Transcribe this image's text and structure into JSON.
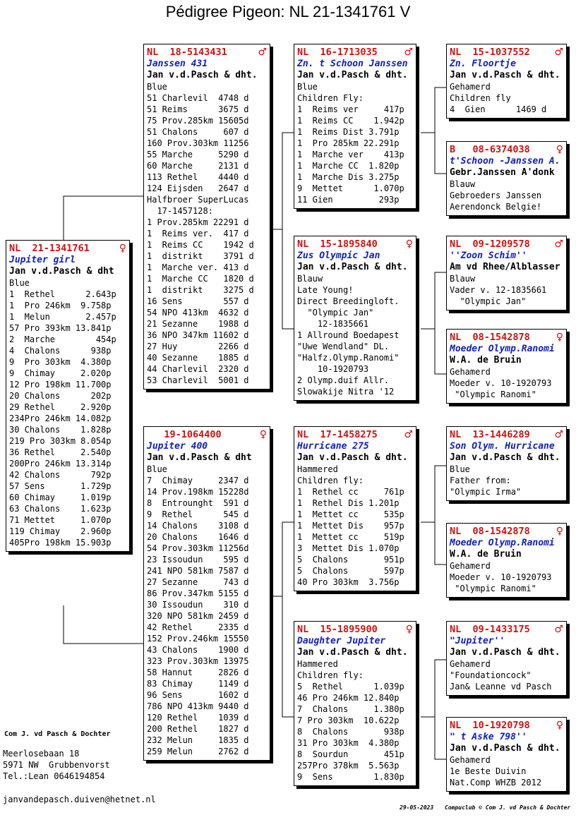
{
  "title": "Pédigree Pigeon: NL  21-1341761 V",
  "cards": [
    {
      "id": "subject",
      "ring": "NL  21-1341761",
      "sex": "♀",
      "name": "Jupiter girl",
      "owner": "Jan v.d.Pasch & dht",
      "lines": [
        "Blue",
        "1  Rethel      2.643p",
        "1  Pro 246km  9.758p",
        "1  Melun       2.457p",
        "57 Pro 393km 13.841p",
        "2  Marche        454p",
        "4  Chalons      938p",
        "9  Pro 303km  4.380p",
        "9  Chimay     2.020p",
        "12 Pro 198km 11.700p",
        "20 Chalons      202p",
        "29 Rethel     2.920p",
        "234Pro 246km 14.082p",
        "30 Chalons    1.828p",
        "219 Pro 303km 8.054p",
        "36 Rethel     2.540p",
        "200Pro 246km 13.314p",
        "42 Chalons      792p",
        "57 Sens       1.729p",
        "60 Chimay     1.019p",
        "63 Chalons    1.623p",
        "71 Mettet     1.070p",
        "119 Chimay    2.960p",
        "405Pro 198km 15.903p"
      ]
    },
    {
      "id": "father",
      "ring": "NL  18-5143431",
      "sex": "♂",
      "name": "Janssen 431",
      "owner": "Jan v.d.Pasch & dht.",
      "lines": [
        "Blue",
        "51 Charlevil  4748 d",
        "51 Reims      3675 d",
        "75 Prov.285km 15605d",
        "51 Chalons     607 d",
        "160 Prov.303km 11256",
        "55 Marche     5290 d",
        "60 Marche     2131 d",
        "113 Rethel    4440 d",
        "124 Eijsden   2647 d",
        "Halfbroer SuperLucas",
        "  17-1457128:",
        "1 Prov.285km 22291 d",
        "1  Reims ver.  417 d",
        "1  Reims CC    1942 d",
        "1  distrikt    3791 d",
        "1  Marche ver. 413 d",
        "1  Marche CC   1820 d",
        "1  distrikt    3275 d",
        "16 Sens        557 d",
        "54 NPO 413km  4632 d",
        "21 Sezanne    1988 d",
        "36 NPO 347km 11602 d",
        "27 Huy        2266 d",
        "40 Sezanne    1885 d",
        "44 Charlevil  2320 d",
        "53 Charlevil  5001 d"
      ]
    },
    {
      "id": "mother",
      "ring": "   19-1064400",
      "sex": "♀",
      "name": "Jupiter 400",
      "owner": "Jan v.d.Pasch & dht",
      "lines": [
        "Blue",
        "7  Chimay     2347 d",
        "14 Prov.198km 15228d",
        "8  Entrounght  591 d",
        "9  Rethel      545 d",
        "14 Chalons    3108 d",
        "20 Chalons    1646 d",
        "54 Prov.303km 11256d",
        "23 Issoudun    595 d",
        "241 NPO 581km 7587 d",
        "27 Sezanne     743 d",
        "86 Prov.347km 5155 d",
        "30 Issoudun    310 d",
        "320 NPO 581km 2459 d",
        "42 Rethel     2335 d",
        "152 Prov.246km 15550",
        "43 Chalons    1900 d",
        "323 Prov.303km 13975",
        "58 Hannut     2826 d",
        "83 Chimay     1149 d",
        "96 Sens       1602 d",
        "786 NPO 413km 9440 d",
        "120 Rethel    1039 d",
        "200 Rethel    1827 d",
        "232 Melun     1835 d",
        "259 Melun     2762 d"
      ]
    },
    {
      "id": "ff",
      "ring": "NL  16-1713035",
      "sex": "♂",
      "name": "Zn. t Schoon Janssen",
      "owner": "Jan v.d.Pasch & dht.",
      "lines": [
        "Blue",
        "Children Fly:",
        "1  Reims ver     417p",
        "1  Reims CC    1.942p",
        "1  Reims Dist 3.791p",
        "1  Pro 285km 22.291p",
        "1  Marche ver    413p",
        "1  Marche CC  1.820p",
        "1  Marche Dis 3.275p",
        "9  Mettet      1.070p",
        "11 Gien         293p"
      ]
    },
    {
      "id": "fm",
      "ring": "NL  15-1895840",
      "sex": "♀",
      "name": "Zus Olympic Jan",
      "owner": "Jan v.d.Pasch & dht.",
      "lines": [
        "Blauw",
        "Late Young!",
        "Direct Breedingloft.",
        "  \"Olympic Jan\"",
        "    12-1835661",
        "1 Allround Boedapest",
        "\"Uwe Wendland\" DL.",
        "\"Halfz.Olymp.Ranomi\"",
        "    10-1920793",
        "2 Olymp.duif Allr.",
        "Slowakije Nitra '12"
      ]
    },
    {
      "id": "mf",
      "ring": "NL  17-1458275",
      "sex": "♂",
      "name": "Hurricane 275",
      "owner": "Jan v.d.Pasch & dht.",
      "lines": [
        "Hammered",
        "Children fly:",
        "1  Rethel cc     761p",
        "1  Rethel Dis 1.201p",
        "1  Mettet cc     535p",
        "1  Mettet Dis    957p",
        "1  Mettet cc     519p",
        "3  Mettet Dis 1.070p",
        "5  Chalons       951p",
        "5  Chalons       597p",
        "40 Pro 303km  3.756p"
      ]
    },
    {
      "id": "mm",
      "ring": "NL  15-1895900",
      "sex": "♀",
      "name": "Daughter Jupiter",
      "owner": "Jan v.d.Pasch & dht.",
      "lines": [
        "Hammered",
        "Children fly:",
        "5  Rethel      1.039p",
        "46 Pro 246km 12.840p",
        "7  Chalons     1.380p",
        "7 Pro 303km  10.622p",
        "8  Chalons       938p",
        "31 Pro 303km  4.380p",
        "8  Sourdun       451p",
        "257Pro 378km  5.563p",
        "9  Sens        1.830p"
      ]
    },
    {
      "id": "fff",
      "ring": "NL  15-1037552",
      "sex": "♂",
      "name": "Zn. Floortje",
      "owner": "Jan v.d.Pasch & dht.",
      "lines": [
        "Gehamerd",
        "Children fly",
        "4  Gien      1469 d"
      ]
    },
    {
      "id": "ffm",
      "ring": "B   08-6374038",
      "sex": "♀",
      "name": "t'Schoon -Janssen A.",
      "owner": "Gebr.Janssen A'donk",
      "lines": [
        "Blauw",
        "Gebroeders Janssen",
        "Aerendonck Belgie!"
      ]
    },
    {
      "id": "fmf",
      "ring": "NL  09-1209578",
      "sex": "♂",
      "name": "''Zoon Schim''",
      "owner": "Am vd Rhee/Alblasser",
      "lines": [
        "Blauw",
        "Vader v. 12-1835661",
        "  \"Olympic Jan\""
      ]
    },
    {
      "id": "fmm",
      "ring": "NL  08-1542878",
      "sex": "♀",
      "name": "Moeder Olymp.Ranomi",
      "owner": "W.A. de Bruin",
      "lines": [
        "Gehamerd",
        "Moeder v. 10-1920793",
        " \"Olympic Ranomi\""
      ]
    },
    {
      "id": "mff",
      "ring": "NL  13-1446289",
      "sex": "♂",
      "name": "Son Olym. Hurricane",
      "owner": "Jan v.d.Pasch & dht.",
      "lines": [
        "Blue",
        "Father from:",
        "\"Olympic Irma\""
      ]
    },
    {
      "id": "mfm",
      "ring": "NL  08-1542878",
      "sex": "♀",
      "name": "Moeder Olymp.Ranomi",
      "owner": "W.A. de Bruin",
      "lines": [
        "Gehamerd",
        "Moeder v. 10-1920793",
        " \"Olympic Ranomi\""
      ]
    },
    {
      "id": "mmf",
      "ring": "NL  09-1433175",
      "sex": "♂",
      "name": "\"Jupiter''",
      "owner": "Jan v.d.Pasch & dht.",
      "lines": [
        "Gehamerd",
        "\"Foundationcock\"",
        "Jan& Leanne vd Pasch"
      ]
    },
    {
      "id": "mmm",
      "ring": "NL  10-1920798",
      "sex": "♀",
      "name": "\" t Aske 798''",
      "owner": "Jan v.d.Pasch & dht.",
      "lines": [
        "Gehamerd",
        "1e Beste Duivin",
        "Nat.Comp WHZB 2012"
      ]
    }
  ],
  "footer": {
    "company": "Com J. vd Pasch & Dochter",
    "address1": "Meerlosebaan 18",
    "address2": "5971 NW  Grubbenvorst",
    "phone": "Tel.:Lean 0646194854",
    "email": "janvandepasch.duiven@hetnet.nl",
    "date": "29-05-2023",
    "software": "Compuclub © Com J. vd Pasch & Dochter"
  }
}
